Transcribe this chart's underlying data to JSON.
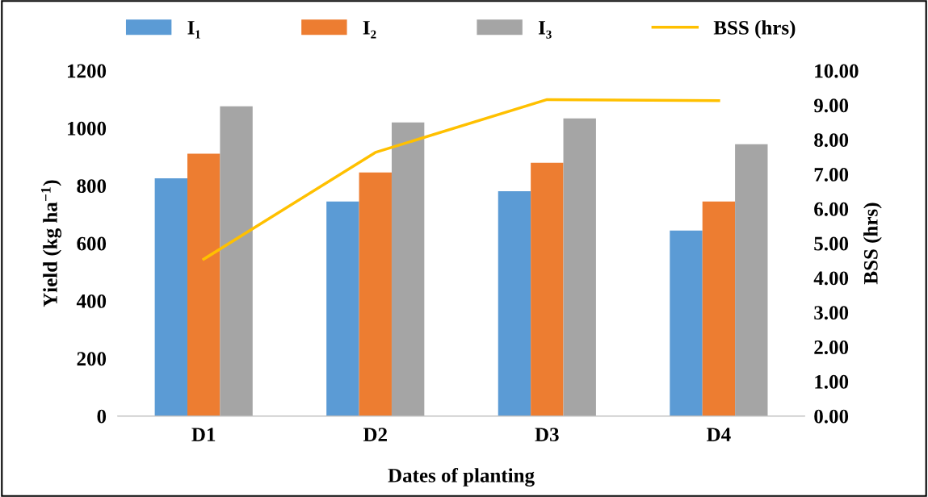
{
  "chart_data": {
    "type": "bar",
    "xlabel": "Dates of planting",
    "ylabel": "Yield (kg ha$^{−1}$)",
    "y2label": "BSS (hrs)",
    "categories": [
      "D1",
      "D2",
      "D3",
      "D4"
    ],
    "series": [
      {
        "name": "I₁",
        "color": "#5b9bd5",
        "values": [
          826,
          745,
          781,
          644
        ]
      },
      {
        "name": "I₂",
        "color": "#ed7d31",
        "values": [
          911,
          846,
          880,
          745
        ]
      },
      {
        "name": "I₃",
        "color": "#a5a5a5",
        "values": [
          1076,
          1020,
          1034,
          944
        ]
      },
      {
        "name": "BSS (hrs)",
        "type": "line",
        "axis": "y2",
        "color": "#ffc000",
        "values": [
          4.54,
          7.63,
          9.16,
          9.13
        ]
      }
    ],
    "ylim": [
      0,
      1200
    ],
    "yticks": [
      0,
      200,
      400,
      600,
      800,
      1000,
      1200
    ],
    "y2lim": [
      0,
      10
    ],
    "y2ticks": [
      {
        "value": 0,
        "label": "0.00"
      },
      {
        "value": 1,
        "label": "1.00"
      },
      {
        "value": 2,
        "label": "2.00"
      },
      {
        "value": 3,
        "label": "3.00"
      },
      {
        "value": 4,
        "label": "4.00"
      },
      {
        "value": 5,
        "label": "5.00"
      },
      {
        "value": 6,
        "label": "6.00"
      },
      {
        "value": 7,
        "label": "7.00"
      },
      {
        "value": 8,
        "label": "8.00"
      },
      {
        "value": 9,
        "label": "9.00"
      },
      {
        "value": 10,
        "label": "10.00"
      }
    ],
    "grid": false,
    "legend": "top",
    "marker": "none",
    "line_style": "solid"
  }
}
